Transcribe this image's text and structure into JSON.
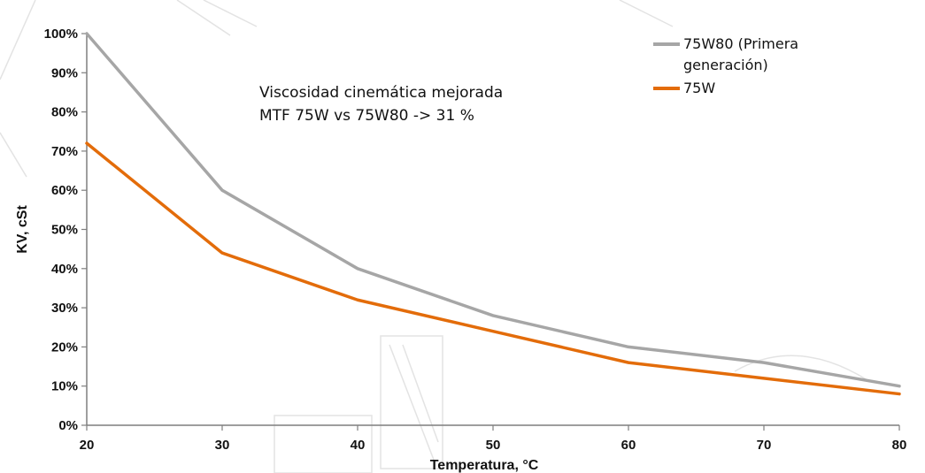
{
  "chart_data": {
    "type": "line",
    "x": [
      20,
      30,
      40,
      50,
      60,
      70,
      80
    ],
    "series": [
      {
        "name": "75W80 (Primera generación)",
        "legend_lines": [
          "75W80 (Primera",
          "generación)"
        ],
        "values": [
          100,
          60,
          40,
          28,
          20,
          16,
          10
        ],
        "color": "#a6a6a6"
      },
      {
        "name": "75W",
        "legend_lines": [
          "75W"
        ],
        "values": [
          72,
          44,
          32,
          24,
          16,
          12,
          8
        ],
        "color": "#e36c0a"
      }
    ],
    "xlabel": "Temperatura, °C",
    "ylabel": "KV, cSt",
    "xlim": [
      20,
      80
    ],
    "ylim": [
      0,
      100
    ],
    "x_ticks": [
      20,
      30,
      40,
      50,
      60,
      70,
      80
    ],
    "y_ticks": [
      0,
      10,
      20,
      30,
      40,
      50,
      60,
      70,
      80,
      90,
      100
    ],
    "y_tick_suffix": "%",
    "grid": false,
    "legend_position": "top-right",
    "annotation": {
      "lines": [
        "Viscosidad cinemática mejorada",
        "MTF 75W vs 75W80 -> 31 %"
      ]
    },
    "axis_color": "#7f7f7f"
  }
}
